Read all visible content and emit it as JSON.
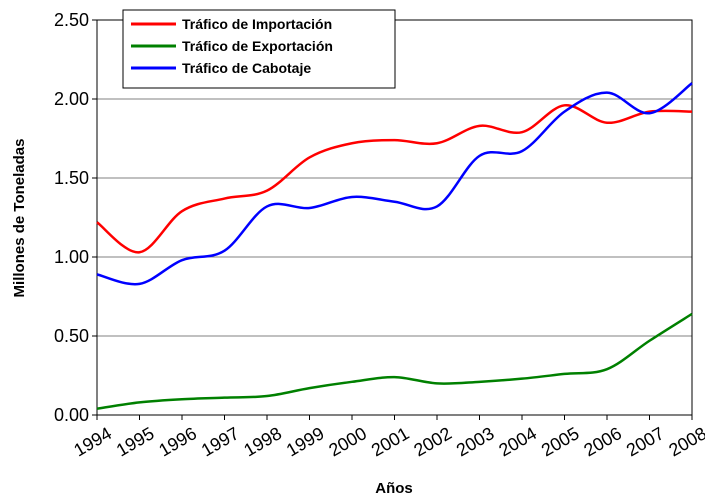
{
  "chart_data": {
    "type": "line",
    "xlabel": "Años",
    "ylabel": "Millones de Toneladas",
    "categories": [
      "1994",
      "1995",
      "1996",
      "1997",
      "1998",
      "1999",
      "2000",
      "2001",
      "2002",
      "2003",
      "2004",
      "2005",
      "2006",
      "2007",
      "2008"
    ],
    "series": [
      {
        "name": "Tráfico de Importación",
        "color": "#ff0000",
        "values": [
          1.22,
          1.03,
          1.29,
          1.37,
          1.42,
          1.63,
          1.72,
          1.74,
          1.72,
          1.83,
          1.79,
          1.96,
          1.85,
          1.92,
          1.92
        ]
      },
      {
        "name": "Tráfico de Exportación",
        "color": "#008000",
        "values": [
          0.04,
          0.08,
          0.1,
          0.11,
          0.12,
          0.17,
          0.21,
          0.24,
          0.2,
          0.21,
          0.23,
          0.26,
          0.29,
          0.47,
          0.64
        ]
      },
      {
        "name": "Tráfico de Cabotaje",
        "color": "#0000ff",
        "values": [
          0.89,
          0.83,
          0.98,
          1.04,
          1.32,
          1.31,
          1.38,
          1.35,
          1.32,
          1.64,
          1.67,
          1.92,
          2.04,
          1.91,
          2.1
        ]
      }
    ],
    "ylim": [
      0,
      2.5
    ],
    "yticks": [
      {
        "value": 0,
        "label": "0.00"
      },
      {
        "value": 0.5,
        "label": "0.50"
      },
      {
        "value": 1,
        "label": "1.00"
      },
      {
        "value": 1.5,
        "label": "1.50"
      },
      {
        "value": 2,
        "label": "2.00"
      },
      {
        "value": 2.5,
        "label": "2.50"
      }
    ],
    "grid": true,
    "legend": "upper left"
  }
}
